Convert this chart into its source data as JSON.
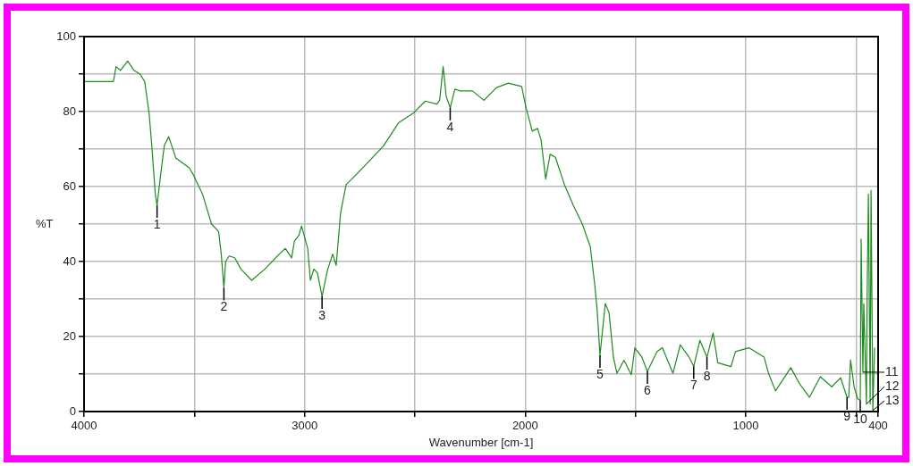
{
  "chart_data": {
    "type": "line",
    "xlabel": "Wavenumber [cm-1]",
    "ylabel": "%T",
    "color": "#1f8a1f",
    "x": [
      4000,
      3867,
      3855,
      3835,
      3802,
      3774,
      3746,
      3725,
      3705,
      3693,
      3677,
      3669,
      3653,
      3636,
      3616,
      3584,
      3523,
      3503,
      3463,
      3422,
      3390,
      3378,
      3366,
      3358,
      3342,
      3317,
      3289,
      3240,
      3180,
      3115,
      3087,
      3059,
      3046,
      3026,
      3014,
      2986,
      2974,
      2958,
      2942,
      2921,
      2897,
      2873,
      2857,
      2837,
      2812,
      2764,
      2695,
      2643,
      2574,
      2509,
      2453,
      2400,
      2388,
      2372,
      2358,
      2340,
      2319,
      2296,
      2239,
      2187,
      2130,
      2077,
      2016,
      1996,
      1968,
      1944,
      1928,
      1907,
      1887,
      1863,
      1822,
      1782,
      1741,
      1705,
      1685,
      1673,
      1661,
      1637,
      1620,
      1600,
      1584,
      1552,
      1519,
      1503,
      1471,
      1446,
      1402,
      1378,
      1330,
      1297,
      1257,
      1236,
      1208,
      1176,
      1148,
      1127,
      1067,
      1047,
      986,
      917,
      897,
      865,
      796,
      756,
      711,
      662,
      610,
      570,
      541,
      533,
      525,
      509,
      493,
      481,
      477,
      469,
      465,
      453,
      449,
      444,
      436,
      432,
      424,
      416
    ],
    "values": [
      88,
      88,
      92,
      91,
      93.5,
      91,
      90,
      88,
      79.5,
      71,
      58,
      55,
      63,
      71,
      73.3,
      67.6,
      65,
      63,
      58,
      50,
      48,
      42,
      33,
      40,
      41.5,
      41,
      38,
      35,
      38,
      42,
      43.5,
      41,
      45.5,
      47,
      49.5,
      43.5,
      35,
      38,
      37,
      30.7,
      37.6,
      42,
      39,
      53,
      60.5,
      63.3,
      67.6,
      70.8,
      77,
      79.5,
      82.8,
      82,
      83,
      92,
      84,
      81,
      86,
      85.5,
      85.5,
      83,
      86.4,
      87.6,
      86.7,
      81,
      74.8,
      75.5,
      72.4,
      62,
      68.6,
      67.8,
      60.5,
      55,
      50,
      44,
      34,
      26.4,
      15,
      28.8,
      26.4,
      14.5,
      10.2,
      13.7,
      9.8,
      17,
      14.5,
      10.7,
      16,
      17,
      10.2,
      17.8,
      14.5,
      12,
      19,
      14.5,
      21,
      13,
      12,
      16,
      17,
      14.5,
      10.2,
      5.5,
      11.7,
      7.4,
      3.8,
      9.3,
      6.6,
      9,
      3.8,
      3.8,
      13.8,
      6.6,
      3.4,
      3,
      46,
      10.5,
      28.8,
      2,
      35,
      58,
      2,
      59,
      0.3,
      17
    ],
    "xlim": [
      4000,
      400
    ],
    "xticks": [
      4000,
      {
        "value": 3500,
        "label": null
      },
      3000,
      {
        "value": 2500,
        "label": null
      },
      2000,
      {
        "value": 1500,
        "label": null
      },
      1000,
      {
        "value": 500,
        "label": null
      },
      400
    ],
    "ylim": [
      0,
      100
    ],
    "yticks": [
      0,
      {
        "value": 10,
        "label": null
      },
      20,
      {
        "value": 30,
        "label": null
      },
      40,
      {
        "value": 50,
        "label": null
      },
      60,
      {
        "value": 70,
        "label": null
      },
      80,
      {
        "value": 90,
        "label": null
      },
      100
    ],
    "grid": true,
    "annotations": [
      {
        "text": "1",
        "x": 3669,
        "y": 55
      },
      {
        "text": "2",
        "x": 3366,
        "y": 33
      },
      {
        "text": "3",
        "x": 2921,
        "y": 30.7
      },
      {
        "text": "4",
        "x": 2340,
        "y": 81
      },
      {
        "text": "5",
        "x": 1661,
        "y": 15
      },
      {
        "text": "6",
        "x": 1446,
        "y": 10.7
      },
      {
        "text": "7",
        "x": 1236,
        "y": 12
      },
      {
        "text": "8",
        "x": 1176,
        "y": 14.5
      },
      {
        "text": "9",
        "x": 541,
        "y": 3.8
      },
      {
        "text": "10",
        "x": 481,
        "y": 3
      },
      {
        "text": "11",
        "x": 469,
        "y": 10.5
      },
      {
        "text": "12",
        "x": 453,
        "y": 2
      },
      {
        "text": "13",
        "x": 424,
        "y": 0.3
      }
    ]
  }
}
